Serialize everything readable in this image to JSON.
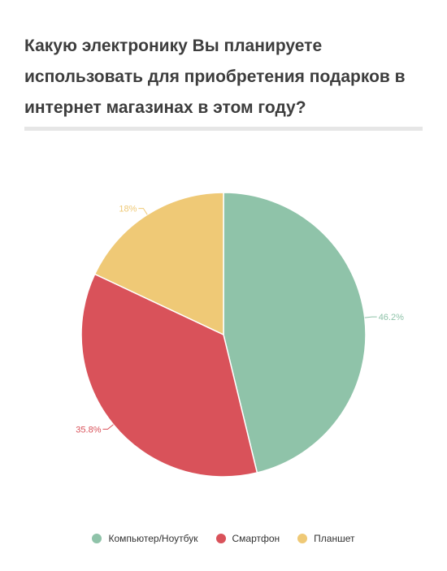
{
  "title": "Какую электронику Вы планируете использовать для приобретения подарков в интернет магазинах в этом году?",
  "chart_data": {
    "type": "pie",
    "title": "Какую электронику Вы планируете использовать для приобретения подарков в интернет магазинах в этом году?",
    "legend_position": "bottom",
    "slices": [
      {
        "name": "Компьютер/Ноутбук",
        "value": 46.2,
        "label": "46.2%",
        "color": "#8fc3a9"
      },
      {
        "name": "Смартфон",
        "value": 35.8,
        "label": "35.8%",
        "color": "#d9525a"
      },
      {
        "name": "Планшет",
        "value": 18,
        "label": "18%",
        "color": "#efc976"
      }
    ]
  }
}
